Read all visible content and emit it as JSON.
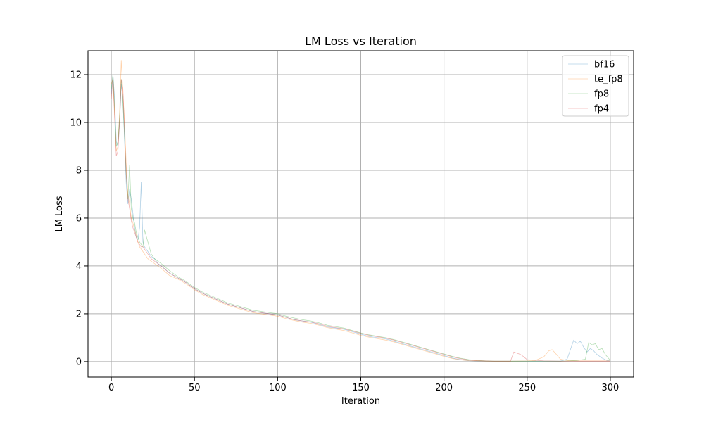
{
  "chart_data": {
    "type": "line",
    "title": "LM Loss vs Iteration",
    "xlabel": "Iteration",
    "ylabel": "LM Loss",
    "xlim": [
      -14,
      314
    ],
    "ylim": [
      -0.65,
      13.0
    ],
    "xticks": [
      0,
      50,
      100,
      150,
      200,
      250,
      300
    ],
    "yticks": [
      0,
      2,
      4,
      6,
      8,
      10,
      12
    ],
    "grid": true,
    "legend_position": "top-right",
    "series": [
      {
        "name": "bf16",
        "color": "#1f77b4",
        "x": [
          0,
          1,
          2,
          3,
          4,
          5,
          6,
          7,
          8,
          9,
          10,
          11,
          12,
          13,
          14,
          15,
          16,
          17,
          18,
          19,
          20,
          22,
          24,
          26,
          28,
          30,
          35,
          40,
          45,
          50,
          55,
          60,
          65,
          70,
          75,
          80,
          85,
          90,
          95,
          100,
          105,
          110,
          115,
          120,
          125,
          130,
          135,
          140,
          145,
          150,
          155,
          160,
          165,
          170,
          175,
          180,
          185,
          190,
          195,
          200,
          205,
          210,
          215,
          220,
          225,
          230,
          240,
          250,
          260,
          270,
          274,
          276,
          278,
          280,
          282,
          284,
          286,
          288,
          290,
          292,
          295,
          298,
          300
        ],
        "y": [
          11.2,
          12.0,
          11.0,
          9.2,
          9.0,
          10.0,
          11.6,
          11.0,
          9.2,
          7.4,
          6.6,
          7.2,
          6.8,
          6.2,
          5.6,
          5.2,
          5.1,
          5.6,
          7.5,
          5.0,
          4.8,
          4.6,
          4.4,
          4.3,
          4.1,
          4.0,
          3.7,
          3.5,
          3.3,
          3.05,
          2.85,
          2.7,
          2.55,
          2.4,
          2.3,
          2.2,
          2.1,
          2.05,
          2.0,
          1.95,
          1.85,
          1.75,
          1.7,
          1.65,
          1.55,
          1.45,
          1.4,
          1.35,
          1.25,
          1.15,
          1.05,
          1.0,
          0.95,
          0.85,
          0.75,
          0.65,
          0.55,
          0.45,
          0.35,
          0.25,
          0.15,
          0.08,
          0.04,
          0.02,
          0.02,
          0.02,
          0.02,
          0.02,
          0.02,
          0.02,
          0.1,
          0.5,
          0.9,
          0.75,
          0.85,
          0.6,
          0.4,
          0.55,
          0.45,
          0.3,
          0.15,
          0.05,
          0.03
        ]
      },
      {
        "name": "te_fp8",
        "color": "#ff7f0e",
        "x": [
          0,
          1,
          2,
          3,
          4,
          5,
          6,
          7,
          8,
          9,
          10,
          11,
          12,
          13,
          14,
          15,
          16,
          17,
          18,
          19,
          20,
          22,
          24,
          26,
          28,
          30,
          35,
          40,
          45,
          50,
          55,
          60,
          65,
          70,
          75,
          80,
          85,
          90,
          95,
          100,
          105,
          110,
          115,
          120,
          125,
          130,
          135,
          140,
          145,
          150,
          155,
          160,
          165,
          170,
          175,
          180,
          185,
          190,
          195,
          200,
          205,
          210,
          215,
          220,
          225,
          230,
          240,
          250,
          255,
          260,
          263,
          265,
          267,
          270,
          275,
          280,
          290,
          300
        ],
        "y": [
          11.6,
          11.8,
          10.4,
          8.8,
          9.0,
          10.4,
          12.6,
          11.2,
          10.0,
          8.2,
          7.0,
          6.6,
          6.0,
          5.8,
          5.5,
          5.3,
          5.0,
          4.8,
          4.7,
          4.6,
          4.5,
          4.3,
          4.2,
          4.1,
          4.0,
          3.9,
          3.6,
          3.45,
          3.25,
          3.0,
          2.8,
          2.65,
          2.5,
          2.35,
          2.25,
          2.15,
          2.05,
          2.0,
          1.95,
          1.9,
          1.8,
          1.72,
          1.65,
          1.6,
          1.52,
          1.42,
          1.36,
          1.3,
          1.2,
          1.1,
          1.02,
          0.96,
          0.9,
          0.82,
          0.72,
          0.62,
          0.52,
          0.42,
          0.32,
          0.22,
          0.13,
          0.07,
          0.04,
          0.03,
          0.02,
          0.02,
          0.02,
          0.03,
          0.05,
          0.2,
          0.45,
          0.5,
          0.35,
          0.1,
          0.04,
          0.03,
          0.03,
          0.03
        ]
      },
      {
        "name": "fp8",
        "color": "#2ca02c",
        "x": [
          0,
          1,
          2,
          3,
          4,
          5,
          6,
          7,
          8,
          9,
          10,
          11,
          12,
          13,
          14,
          15,
          16,
          17,
          18,
          19,
          20,
          22,
          24,
          26,
          28,
          30,
          35,
          40,
          45,
          50,
          55,
          60,
          65,
          70,
          75,
          80,
          85,
          90,
          95,
          100,
          105,
          110,
          115,
          120,
          125,
          130,
          135,
          140,
          145,
          150,
          155,
          160,
          165,
          170,
          175,
          180,
          185,
          190,
          195,
          200,
          205,
          210,
          215,
          220,
          225,
          230,
          240,
          250,
          260,
          270,
          275,
          280,
          285,
          287,
          289,
          291,
          293,
          295,
          297,
          300
        ],
        "y": [
          11.4,
          12.0,
          10.6,
          9.0,
          9.2,
          10.2,
          11.8,
          10.8,
          9.4,
          7.8,
          6.8,
          8.2,
          6.4,
          6.0,
          5.8,
          5.4,
          5.2,
          5.0,
          4.9,
          4.8,
          5.5,
          5.0,
          4.5,
          4.3,
          4.2,
          4.1,
          3.8,
          3.55,
          3.35,
          3.1,
          2.9,
          2.75,
          2.6,
          2.45,
          2.35,
          2.25,
          2.15,
          2.1,
          2.05,
          2.0,
          1.9,
          1.82,
          1.75,
          1.7,
          1.62,
          1.52,
          1.46,
          1.4,
          1.3,
          1.2,
          1.12,
          1.06,
          1.0,
          0.92,
          0.82,
          0.72,
          0.62,
          0.52,
          0.42,
          0.32,
          0.22,
          0.14,
          0.08,
          0.05,
          0.03,
          0.02,
          0.02,
          0.02,
          0.02,
          0.02,
          0.03,
          0.05,
          0.1,
          0.8,
          0.7,
          0.75,
          0.5,
          0.55,
          0.3,
          0.05
        ]
      },
      {
        "name": "fp4",
        "color": "#d62728",
        "x": [
          0,
          1,
          2,
          3,
          4,
          5,
          6,
          7,
          8,
          9,
          10,
          11,
          12,
          13,
          14,
          15,
          16,
          17,
          18,
          19,
          20,
          22,
          24,
          26,
          28,
          30,
          35,
          40,
          45,
          50,
          55,
          60,
          65,
          70,
          75,
          80,
          85,
          90,
          95,
          100,
          105,
          110,
          115,
          120,
          125,
          130,
          135,
          140,
          145,
          150,
          155,
          160,
          165,
          170,
          175,
          180,
          185,
          190,
          195,
          200,
          205,
          210,
          215,
          220,
          225,
          230,
          240,
          242,
          244,
          246,
          248,
          250,
          260,
          270,
          280,
          290,
          300
        ],
        "y": [
          11.0,
          11.9,
          10.2,
          8.6,
          8.8,
          10.0,
          11.8,
          11.4,
          9.6,
          7.8,
          6.8,
          6.4,
          5.9,
          5.6,
          5.4,
          5.2,
          5.0,
          4.9,
          4.8,
          4.8,
          4.7,
          4.5,
          4.3,
          4.2,
          4.1,
          4.0,
          3.7,
          3.5,
          3.3,
          3.05,
          2.85,
          2.7,
          2.55,
          2.4,
          2.3,
          2.2,
          2.1,
          2.05,
          2.0,
          1.95,
          1.85,
          1.76,
          1.7,
          1.66,
          1.58,
          1.48,
          1.42,
          1.37,
          1.28,
          1.18,
          1.1,
          1.04,
          0.98,
          0.9,
          0.8,
          0.7,
          0.6,
          0.5,
          0.4,
          0.3,
          0.2,
          0.12,
          0.07,
          0.04,
          0.03,
          0.02,
          0.02,
          0.4,
          0.35,
          0.3,
          0.2,
          0.08,
          0.03,
          0.02,
          0.02,
          0.02,
          0.02
        ]
      }
    ]
  }
}
